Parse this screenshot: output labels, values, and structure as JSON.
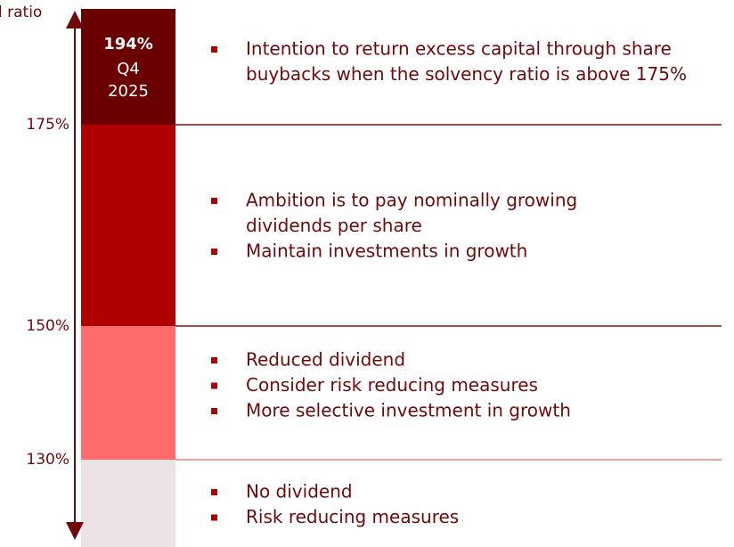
{
  "axis_label": "l ratio",
  "current": {
    "value": "194%",
    "period": "Q4",
    "year": "2025"
  },
  "levels": [
    "175%",
    "150%",
    "130%"
  ],
  "zones": [
    {
      "bullets": [
        [
          "Intention to return excess capital through share",
          "buybacks when the solvency ratio is above 175%"
        ]
      ]
    },
    {
      "bullets": [
        [
          "Ambition is to pay nominally growing",
          "dividends per share"
        ],
        [
          "Maintain investments in growth"
        ]
      ]
    },
    {
      "bullets": [
        [
          "Reduced dividend"
        ],
        [
          "Consider risk reducing measures"
        ],
        [
          "More selective investment in growth"
        ]
      ]
    },
    {
      "bullets": [
        [
          "No dividend"
        ],
        [
          "Risk reducing measures"
        ]
      ]
    }
  ]
}
